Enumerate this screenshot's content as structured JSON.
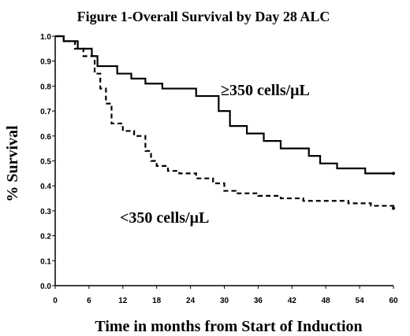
{
  "chart_data": {
    "type": "line",
    "title": "Figure 1-Overall Survival by Day 28 ALC",
    "xlabel": "Time in months from Start of Induction",
    "ylabel": "% Survival",
    "xlim": [
      0,
      60
    ],
    "ylim": [
      0,
      1.0
    ],
    "x_ticks": [
      "0",
      "6",
      "12",
      "18",
      "24",
      "30",
      "36",
      "42",
      "48",
      "54",
      "60"
    ],
    "y_ticks": [
      "0.0",
      "0.1",
      "0.2",
      "0.3",
      "0.4",
      "0.5",
      "0.6",
      "0.7",
      "0.8",
      "0.9",
      "1.0"
    ],
    "grid": false,
    "series": [
      {
        "name": "≥350 cells/μL",
        "style": "solid",
        "color": "#000000",
        "step": true,
        "x": [
          0,
          1.5,
          4,
          6.5,
          7.5,
          11,
          13.5,
          16,
          19,
          25,
          29,
          31,
          34,
          37,
          40,
          45,
          47,
          50,
          55,
          60
        ],
        "y": [
          1.0,
          0.98,
          0.95,
          0.92,
          0.88,
          0.85,
          0.83,
          0.81,
          0.79,
          0.76,
          0.7,
          0.64,
          0.61,
          0.58,
          0.55,
          0.52,
          0.49,
          0.47,
          0.45,
          0.45
        ]
      },
      {
        "name": "<350 cells/μL",
        "style": "dashed",
        "color": "#000000",
        "step": true,
        "x": [
          0,
          1.5,
          3.5,
          5,
          7,
          8,
          9,
          10,
          12,
          14,
          16,
          17,
          18,
          20,
          22,
          25,
          28,
          30,
          32,
          36,
          40,
          44,
          48,
          52,
          56,
          60
        ],
        "y": [
          1.0,
          0.98,
          0.95,
          0.92,
          0.85,
          0.79,
          0.73,
          0.65,
          0.62,
          0.6,
          0.54,
          0.5,
          0.48,
          0.46,
          0.45,
          0.43,
          0.41,
          0.38,
          0.37,
          0.36,
          0.35,
          0.34,
          0.34,
          0.33,
          0.32,
          0.31
        ]
      }
    ],
    "annotations": [
      {
        "prefix": "≥",
        "text": "350 cells/μL",
        "series": 0
      },
      {
        "prefix": "<",
        "text": "350 cells/μL",
        "series": 1
      }
    ]
  }
}
